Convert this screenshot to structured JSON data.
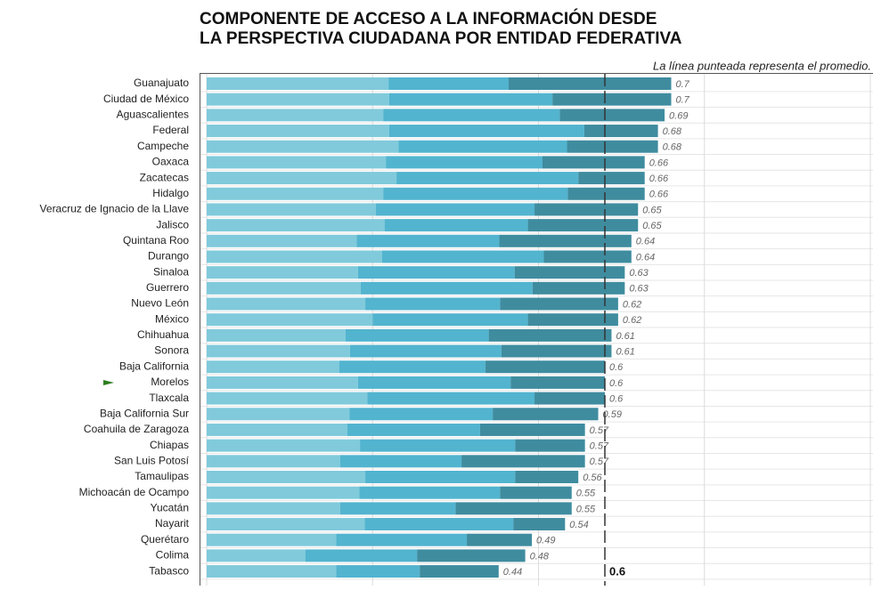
{
  "chart_data": {
    "type": "stacked-barh",
    "title": "COMPONENTE DE ACCESO A LA INFORMACIÓN DESDE",
    "subtitle": "LA PERSPECTIVA CIUDADANA POR ENTIDAD FEDERATIVA",
    "note": "La línea punteada representa el promedio.",
    "categories": [
      "Guanajuato",
      "Ciudad de México",
      "Aguascalientes",
      "Federal",
      "Campeche",
      "Oaxaca",
      "Zacatecas",
      "Hidalgo",
      "Veracruz de Ignacio de la Llave",
      "Jalisco",
      "Quintana Roo",
      "Durango",
      "Sinaloa",
      "Guerrero",
      "Nuevo León",
      "México",
      "Chihuahua",
      "Sonora",
      "Baja California",
      "Morelos",
      "Tlaxcala",
      "Baja California Sur",
      "Coahuila de Zaragoza",
      "Chiapas",
      "San Luis Potosí",
      "Tamaulipas",
      "Michoacán de Ocampo",
      "Yucatán",
      "Nayarit",
      "Querétaro",
      "Colima",
      "Tabasco"
    ],
    "series": [
      {
        "color": "#80cadb",
        "values": [
          0.274,
          0.275,
          0.266,
          0.275,
          0.289,
          0.27,
          0.286,
          0.266,
          0.255,
          0.268,
          0.226,
          0.264,
          0.228,
          0.232,
          0.239,
          0.25,
          0.209,
          0.216,
          0.2,
          0.228,
          0.242,
          0.215,
          0.212,
          0.231,
          0.201,
          0.239,
          0.23,
          0.201,
          0.238,
          0.195,
          0.149,
          0.195
        ]
      },
      {
        "color": "#52b4cf",
        "values": [
          0.181,
          0.246,
          0.266,
          0.294,
          0.254,
          0.236,
          0.274,
          0.278,
          0.239,
          0.216,
          0.215,
          0.244,
          0.236,
          0.259,
          0.203,
          0.234,
          0.216,
          0.228,
          0.22,
          0.23,
          0.252,
          0.216,
          0.2,
          0.234,
          0.183,
          0.226,
          0.212,
          0.174,
          0.224,
          0.197,
          0.168,
          0.126
        ]
      },
      {
        "color": "#3f8c9f",
        "values": [
          0.245,
          0.179,
          0.158,
          0.111,
          0.137,
          0.154,
          0.1,
          0.116,
          0.156,
          0.166,
          0.199,
          0.132,
          0.166,
          0.139,
          0.178,
          0.136,
          0.185,
          0.166,
          0.18,
          0.142,
          0.106,
          0.159,
          0.158,
          0.105,
          0.186,
          0.095,
          0.108,
          0.175,
          0.078,
          0.098,
          0.163,
          0.119
        ]
      }
    ],
    "totals": [
      0.7,
      0.7,
      0.69,
      0.68,
      0.68,
      0.66,
      0.66,
      0.66,
      0.65,
      0.65,
      0.64,
      0.64,
      0.63,
      0.63,
      0.62,
      0.62,
      0.61,
      0.61,
      0.6,
      0.6,
      0.6,
      0.59,
      0.57,
      0.57,
      0.57,
      0.56,
      0.55,
      0.55,
      0.54,
      0.49,
      0.48,
      0.44
    ],
    "average": 0.6,
    "xlim": [
      0,
      1
    ],
    "xticks": [
      0,
      0.25,
      0.5,
      0.75,
      1
    ],
    "grid": true
  }
}
